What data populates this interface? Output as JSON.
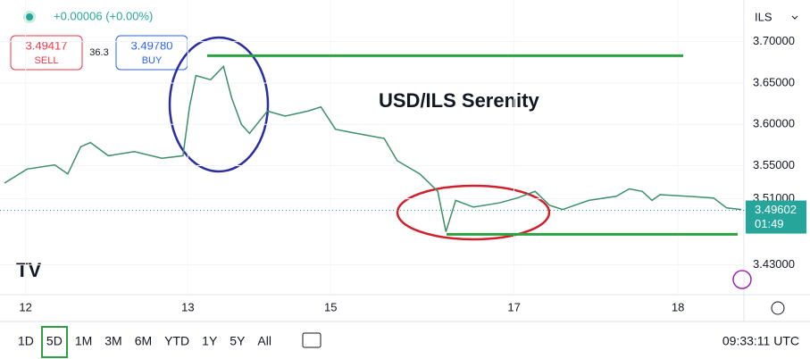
{
  "chart_data": {
    "type": "line",
    "title": "USD/ILS Serenity",
    "color": "#3d8f6a",
    "x": [
      -0.13,
      0.01,
      0.18,
      0.26,
      0.34,
      0.4,
      0.51,
      0.67,
      0.84,
      0.97,
      1.01,
      1.05,
      1.14,
      1.22,
      1.27,
      1.33,
      1.38,
      1.49,
      1.6,
      1.74,
      1.82,
      1.91,
      2.04,
      2.21,
      2.29,
      2.43,
      2.54,
      2.59,
      2.65,
      2.76,
      2.92,
      3.03,
      3.14,
      3.23,
      3.31,
      3.47,
      3.64,
      3.72,
      3.8,
      3.86,
      3.91,
      4.08,
      4.24,
      4.32,
      4.41
    ],
    "values": [
      3.529,
      3.546,
      3.551,
      3.54,
      3.573,
      3.578,
      3.562,
      3.567,
      3.559,
      3.562,
      3.621,
      3.659,
      3.654,
      3.67,
      3.632,
      3.6,
      3.589,
      3.616,
      3.61,
      3.616,
      3.621,
      3.594,
      3.589,
      3.583,
      3.556,
      3.54,
      3.519,
      3.47,
      3.508,
      3.5,
      3.505,
      3.511,
      3.519,
      3.502,
      3.497,
      3.508,
      3.513,
      3.522,
      3.519,
      3.508,
      3.515,
      3.513,
      3.511,
      3.499,
      3.497
    ],
    "xlim": [
      -0.13,
      4.41
    ],
    "xticks": [
      {
        "value": 0,
        "label": "12"
      },
      {
        "value": 1,
        "label": "13"
      },
      {
        "value": 1.88,
        "label": "15"
      },
      {
        "value": 3.01,
        "label": "17"
      },
      {
        "value": 4.02,
        "label": "18"
      }
    ],
    "ylim": [
      3.394,
      3.745
    ],
    "yticks": [
      {
        "value": 3.43,
        "label": "3.43000"
      },
      {
        "value": 3.51,
        "label": "3.51000"
      },
      {
        "value": 3.55,
        "label": "3.55000"
      },
      {
        "value": 3.6,
        "label": "3.60000"
      },
      {
        "value": 3.65,
        "label": "3.65000"
      },
      {
        "value": 3.7,
        "label": "3.70000"
      }
    ],
    "levels": [
      3.683,
      3.467
    ],
    "level_color": "#2ea043",
    "last_price": 3.49602,
    "countdown": "01:49",
    "grid": true
  },
  "ui": {
    "change": "+0.00006 (+0.00%)",
    "sell_price": "3.49417",
    "sell": "SELL",
    "spread": "36.3",
    "buy_price": "3.49780",
    "buy": "BUY",
    "currency": "ILS",
    "timeframes": [
      "1D",
      "5D",
      "1M",
      "3M",
      "6M",
      "YTD",
      "1Y",
      "5Y",
      "All"
    ],
    "clock": "09:33:11 UTC"
  }
}
